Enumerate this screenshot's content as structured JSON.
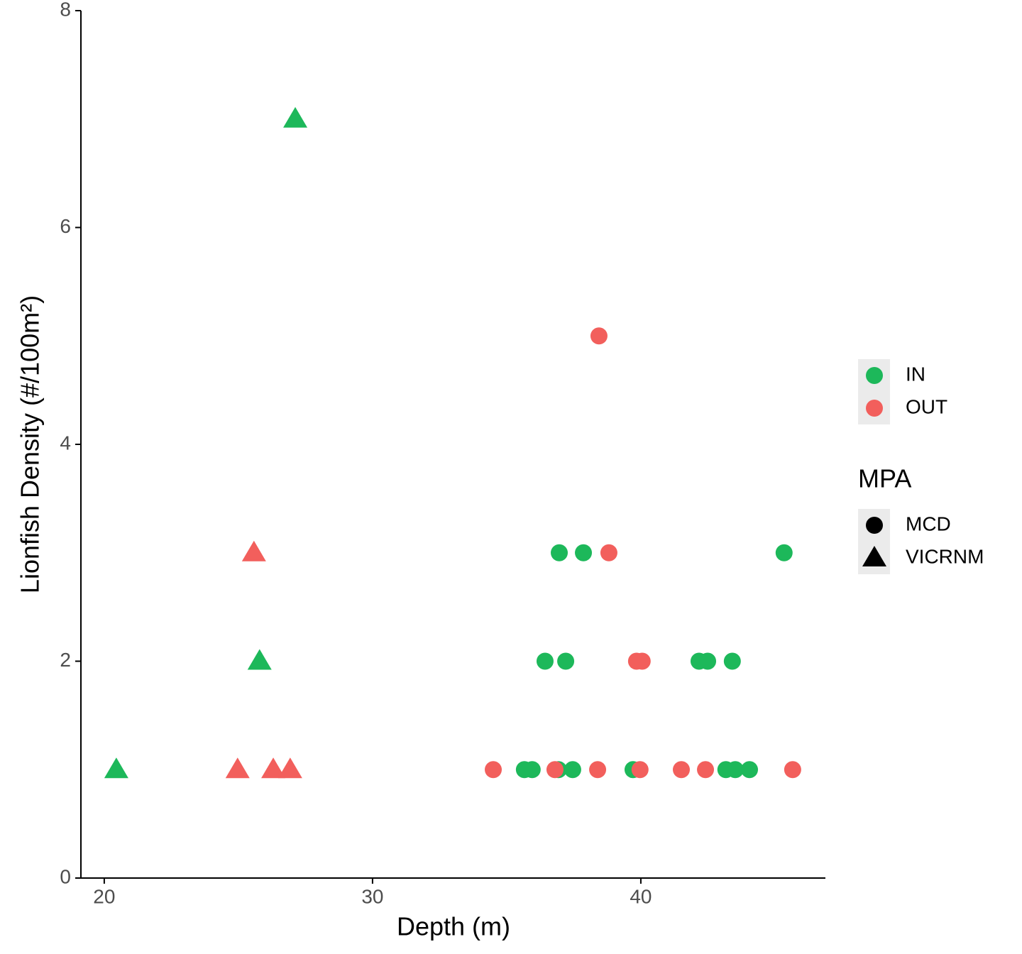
{
  "chart_data": {
    "type": "scatter",
    "xlabel": "Depth (m)",
    "ylabel": "Lionfish Density (#/100m²)",
    "xlim": [
      19.13,
      46.88
    ],
    "ylim": [
      0,
      8
    ],
    "xticks": [
      20,
      30,
      40
    ],
    "yticks": [
      0,
      2,
      4,
      6,
      8
    ],
    "color_legend": [
      {
        "name": "IN",
        "color": "#1db85a"
      },
      {
        "name": "OUT",
        "color": "#f25f5c"
      }
    ],
    "shape_legend": {
      "title": "MPA",
      "items": [
        {
          "name": "MCD",
          "shape": "circle"
        },
        {
          "name": "VICRNM",
          "shape": "triangle"
        }
      ]
    },
    "series": [
      {
        "color": "#1db85a",
        "shape": "triangle",
        "x": [
          20.45,
          25.79,
          27.12
        ],
        "values": [
          1,
          2,
          7
        ]
      },
      {
        "color": "#f25f5c",
        "shape": "triangle",
        "x": [
          25.58,
          24.97,
          26.3,
          26.93
        ],
        "values": [
          3,
          1,
          1,
          1
        ]
      },
      {
        "color": "#1db85a",
        "shape": "circle",
        "x": [
          36.96,
          37.86,
          45.34,
          36.43,
          37.2,
          42.17,
          42.49,
          43.41,
          35.66,
          35.95,
          36.93,
          37.46,
          39.71,
          43.17,
          43.52,
          44.05
        ],
        "values": [
          3,
          3,
          3,
          2,
          2,
          2,
          2,
          2,
          1,
          1,
          1,
          1,
          1,
          1,
          1,
          1
        ]
      },
      {
        "color": "#f25f5c",
        "shape": "circle",
        "x": [
          38.44,
          38.81,
          39.84,
          40.05,
          34.5,
          36.8,
          38.39,
          39.97,
          41.51,
          42.41,
          45.66
        ],
        "values": [
          5,
          3,
          2,
          2,
          1,
          1,
          1,
          1,
          1,
          1,
          1
        ]
      }
    ]
  }
}
